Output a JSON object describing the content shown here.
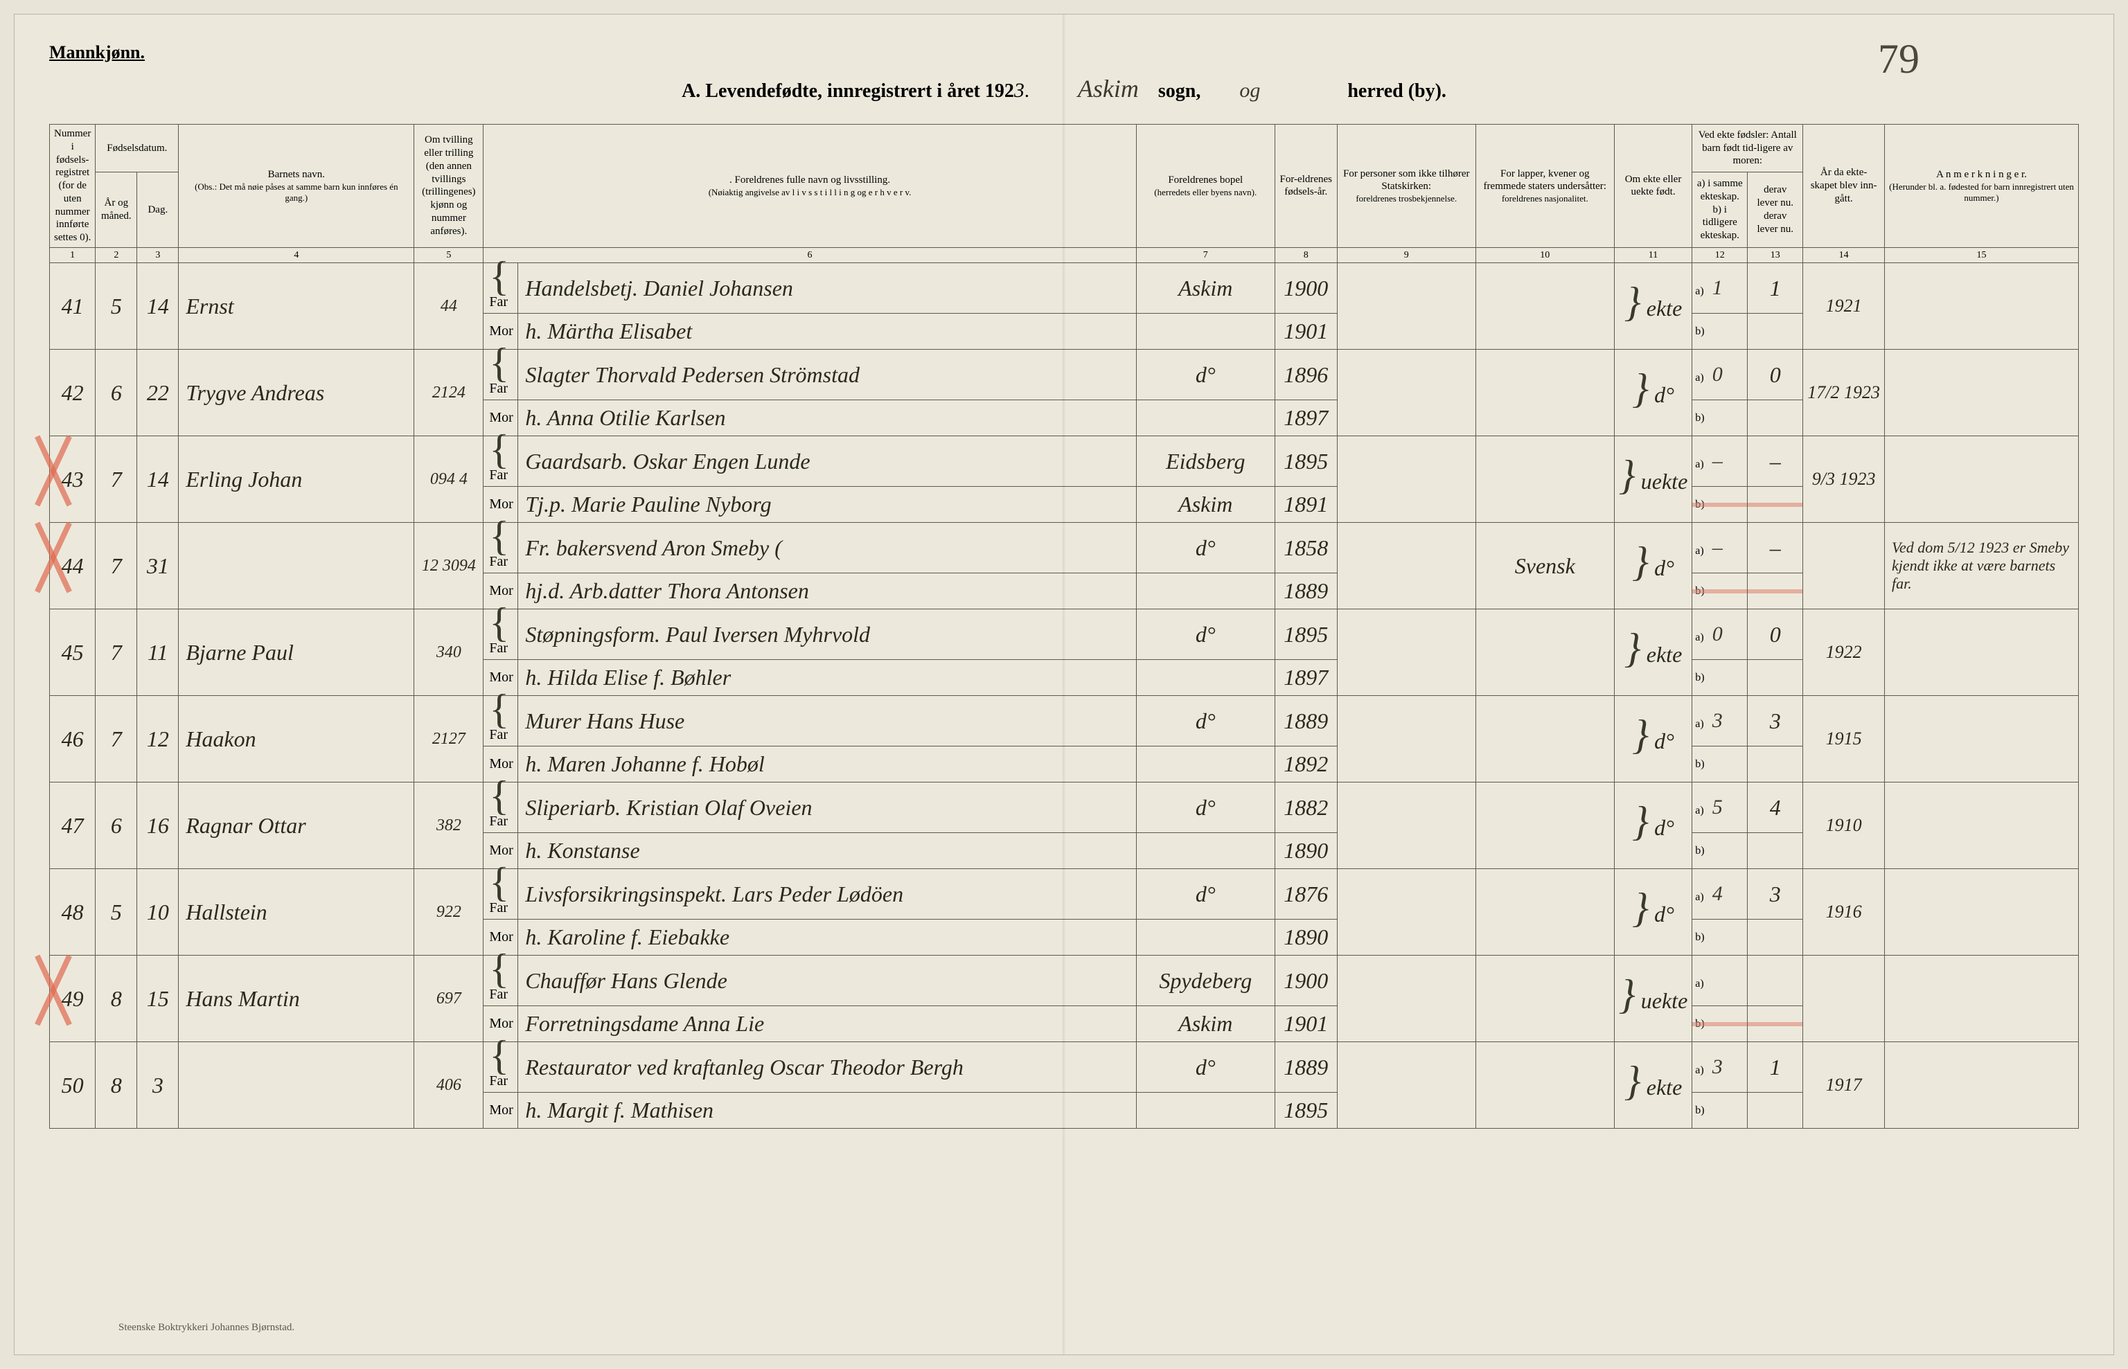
{
  "colors": {
    "page_bg": "#ece9dc",
    "ink": "#2a2a1a",
    "border": "#5a5a4a",
    "red_mark": "#e06850",
    "red_strike": "#e0887a"
  },
  "header": {
    "gender": "Mannkjønn.",
    "title_prefix": "A.  Levendefødte, innregistrert i året 192",
    "year_suffix": "3",
    "period": ".",
    "sogn_value": "Askim",
    "sogn_label": "sogn,",
    "og": "og",
    "herred_label": "herred (by).",
    "page_number": "79"
  },
  "col_headers": {
    "c1": "Nummer i fødsels-registret (for de uten nummer innførte settes 0).",
    "c2_top": "Fødselsdatum.",
    "c2a": "År og måned.",
    "c2b": "Dag.",
    "c4_top": "Barnets navn.",
    "c4_sub": "(Obs.: Det må nøie påses at samme barn kun innføres én gang.)",
    "c5": "Om tvilling eller trilling (den annen tvillings (trillingenes) kjønn og nummer anføres).",
    "c6_top": ". Foreldrenes fulle navn og livsstilling.",
    "c6_sub": "(Nøiaktig angivelse av  l i v s s t i l l i n g  og  e r h v e r v.",
    "c7_top": "Foreldrenes bopel",
    "c7_sub": "(herredets eller byens navn).",
    "c8": "For-eldrenes fødsels-år.",
    "c9_top": "For personer som ikke tilhører Statskirken:",
    "c9_sub": "foreldrenes trosbekjennelse.",
    "c10_top": "For lapper, kvener og fremmede staters undersåtter:",
    "c10_sub": "foreldrenes nasjonalitet.",
    "c11": "Om ekte eller uekte født.",
    "c12_top": "Ved ekte fødsler: Antall barn født tid-ligere av moren:",
    "c12a": "a) i samme ekteskap.",
    "c12b": "b) i tidligere ekteskap.",
    "c13a": "derav lever nu.",
    "c13b": "derav lever nu.",
    "c14": "År da ekte-skapet blev inn-gått.",
    "c15_top": "A n m e r k n i n g e r.",
    "c15_sub": "(Herunder bl. a. fødested for barn innregistrert uten nummer.)",
    "far": "Far",
    "mor": "Mor"
  },
  "col_numbers": [
    "1",
    "2",
    "3",
    "4",
    "5",
    "6",
    "7",
    "8",
    "9",
    "10",
    "11",
    "12",
    "13",
    "14",
    "15"
  ],
  "rows": [
    {
      "num": "41",
      "month": "5",
      "day": "14",
      "child": "Ernst",
      "twin": "44",
      "far": "Handelsbetj. Daniel Johansen",
      "mor": "h. Märtha Elisabet",
      "place_far": "Askim",
      "place_mor": "",
      "yr_far": "1900",
      "yr_mor": "1901",
      "relig": "",
      "nation": "",
      "ekte": "ekte",
      "a_same": "1",
      "a_prev": "1",
      "marr": "1921",
      "notes": "",
      "red_x": false,
      "red_strike_b": false
    },
    {
      "num": "42",
      "month": "6",
      "day": "22",
      "child": "Trygve Andreas",
      "twin": "2124",
      "far": "Slagter Thorvald Pedersen Strömstad",
      "mor": "h. Anna Otilie Karlsen",
      "place_far": "d°",
      "place_mor": "",
      "yr_far": "1896",
      "yr_mor": "1897",
      "relig": "",
      "nation": "",
      "ekte": "d°",
      "a_same": "0",
      "a_prev": "0",
      "marr": "17/2 1923",
      "notes": "",
      "red_x": false,
      "red_strike_b": false
    },
    {
      "num": "43",
      "month": "7",
      "day": "14",
      "child": "Erling Johan",
      "twin": "094    4",
      "far": "Gaardsarb. Oskar Engen Lunde",
      "mor": "Tj.p. Marie Pauline Nyborg",
      "place_far": "Eidsberg",
      "place_mor": "Askim",
      "yr_far": "1895",
      "yr_mor": "1891",
      "relig": "",
      "nation": "",
      "ekte": "uekte",
      "a_same": "–",
      "a_prev": "–",
      "marr": "9/3 1923",
      "notes": "",
      "red_x": true,
      "red_strike_b": true
    },
    {
      "num": "44",
      "month": "7",
      "day": "31",
      "child": "",
      "twin": "12   3094",
      "far": "Fr. bakersvend Aron Smeby (",
      "mor": "hj.d. Arb.datter Thora Antonsen",
      "place_far": "d°",
      "place_mor": "",
      "yr_far": "1858",
      "yr_mor": "1889",
      "relig": "",
      "nation": "Svensk",
      "ekte": "d°",
      "a_same": "–",
      "a_prev": "–",
      "marr": "",
      "notes": "Ved dom 5/12 1923 er Smeby kjendt ikke at være barnets far.",
      "red_x": true,
      "red_strike_b": true
    },
    {
      "num": "45",
      "month": "7",
      "day": "11",
      "child": "Bjarne Paul",
      "twin": "340",
      "far": "Støpningsform. Paul Iversen Myhrvold",
      "mor": "h. Hilda Elise f. Bøhler",
      "place_far": "d°",
      "place_mor": "",
      "yr_far": "1895",
      "yr_mor": "1897",
      "relig": "",
      "nation": "",
      "ekte": "ekte",
      "a_same": "0",
      "a_prev": "0",
      "marr": "1922",
      "notes": "",
      "red_x": false,
      "red_strike_b": false
    },
    {
      "num": "46",
      "month": "7",
      "day": "12",
      "child": "Haakon",
      "twin": "2127",
      "far": "Murer Hans Huse",
      "mor": "h. Maren Johanne f. Hobøl",
      "place_far": "d°",
      "place_mor": "",
      "yr_far": "1889",
      "yr_mor": "1892",
      "relig": "",
      "nation": "",
      "ekte": "d°",
      "a_same": "3",
      "a_prev": "3",
      "marr": "1915",
      "notes": "",
      "red_x": false,
      "red_strike_b": false
    },
    {
      "num": "47",
      "month": "6",
      "day": "16",
      "child": "Ragnar Ottar",
      "twin": "382",
      "far": "Sliperiarb. Kristian Olaf Oveien",
      "mor": "h. Konstanse",
      "place_far": "d°",
      "place_mor": "",
      "yr_far": "1882",
      "yr_mor": "1890",
      "relig": "",
      "nation": "",
      "ekte": "d°",
      "a_same": "5",
      "a_prev": "4",
      "marr": "1910",
      "notes": "",
      "red_x": false,
      "red_strike_b": false
    },
    {
      "num": "48",
      "month": "5",
      "day": "10",
      "child": "Hallstein",
      "twin": "922",
      "far": "Livsforsikringsinspekt. Lars Peder Lødöen",
      "mor": "h. Karoline f. Eiebakke",
      "place_far": "d°",
      "place_mor": "",
      "yr_far": "1876",
      "yr_mor": "1890",
      "relig": "",
      "nation": "",
      "ekte": "d°",
      "a_same": "4",
      "a_prev": "3",
      "marr": "1916",
      "notes": "",
      "red_x": false,
      "red_strike_b": false
    },
    {
      "num": "49",
      "month": "8",
      "day": "15",
      "child": "Hans Martin",
      "twin": "697",
      "far": "Chauffør Hans Glende",
      "mor": "Forretningsdame Anna Lie",
      "place_far": "Spydeberg",
      "place_mor": "Askim",
      "yr_far": "1900",
      "yr_mor": "1901",
      "relig": "",
      "nation": "",
      "ekte": "uekte",
      "a_same": "",
      "a_prev": "",
      "marr": "",
      "notes": "",
      "red_x": true,
      "red_strike_b": true
    },
    {
      "num": "50",
      "month": "8",
      "day": "3",
      "child": "",
      "twin": "406",
      "far": "Restaurator ved kraftanleg Oscar Theodor Bergh",
      "mor": "h. Margit f. Mathisen",
      "place_far": "d°",
      "place_mor": "",
      "yr_far": "1889",
      "yr_mor": "1895",
      "relig": "",
      "nation": "",
      "ekte": "ekte",
      "a_same": "3",
      "a_prev": "1",
      "marr": "1917",
      "notes": "",
      "red_x": false,
      "red_strike_b": false
    }
  ],
  "footer": "Steenske Boktrykkeri Johannes Bjørnstad."
}
